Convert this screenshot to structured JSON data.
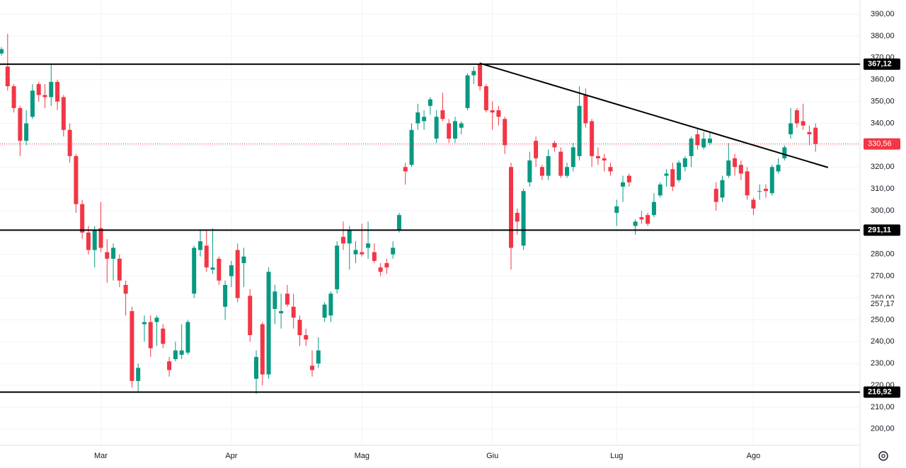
{
  "chart_data": {
    "type": "candlestick",
    "up_color": "#089981",
    "down_color": "#f23645",
    "xlim": [
      -0.23,
      138.15
    ],
    "ylim": [
      192.5,
      396.5
    ],
    "grid": true,
    "xticks": [
      {
        "value": 16,
        "label": "Mar"
      },
      {
        "value": 37,
        "label": "Apr"
      },
      {
        "value": 58,
        "label": "Mag"
      },
      {
        "value": 79,
        "label": "Giu"
      },
      {
        "value": 99,
        "label": "Lug"
      },
      {
        "value": 121,
        "label": "Ago"
      }
    ],
    "yticks": [
      {
        "value": 200,
        "label": "200,00"
      },
      {
        "value": 210,
        "label": "210,00"
      },
      {
        "value": 220,
        "label": "220,00"
      },
      {
        "value": 230,
        "label": "230,00"
      },
      {
        "value": 240,
        "label": "240,00"
      },
      {
        "value": 250,
        "label": "250,00"
      },
      {
        "value": 260,
        "label": "260,00"
      },
      {
        "value": 270,
        "label": "270,00"
      },
      {
        "value": 280,
        "label": "280,00"
      },
      {
        "value": 290,
        "label": "290,00"
      },
      {
        "value": 300,
        "label": "300,00"
      },
      {
        "value": 310,
        "label": "310,00"
      },
      {
        "value": 320,
        "label": "320,00"
      },
      {
        "value": 330,
        "label": "330,00"
      },
      {
        "value": 340,
        "label": "340,00"
      },
      {
        "value": 350,
        "label": "350,00"
      },
      {
        "value": 360,
        "label": "360,00"
      },
      {
        "value": 370,
        "label": "370,00"
      },
      {
        "value": 380,
        "label": "380,00"
      },
      {
        "value": 390,
        "label": "390,00"
      }
    ],
    "open": [
      372,
      366,
      357,
      347,
      332,
      343,
      358,
      353,
      352,
      359,
      352,
      337,
      325,
      303,
      290,
      282,
      292,
      281,
      278,
      278,
      266,
      254,
      222,
      248,
      249,
      249,
      246,
      231,
      232,
      234,
      235,
      262,
      282,
      284,
      273,
      278,
      256,
      270,
      282,
      276,
      261,
      223,
      248,
      225,
      255,
      253,
      262,
      256,
      250,
      243,
      229,
      230,
      251,
      252,
      264,
      288,
      285,
      280,
      281,
      283,
      281,
      274,
      276,
      280,
      291,
      320,
      321,
      340,
      341,
      348,
      333,
      346,
      340,
      333,
      338,
      347,
      362,
      367,
      357,
      346,
      346,
      342,
      320,
      299,
      284,
      313,
      332,
      320,
      316,
      331,
      327,
      316,
      320,
      325,
      353,
      341,
      325,
      324,
      320,
      299,
      311,
      316,
      293,
      297,
      298,
      298,
      307,
      316,
      319,
      314,
      320,
      325,
      335,
      329,
      331,
      310,
      306,
      316,
      324,
      321,
      318,
      305,
      309,
      310,
      308,
      318,
      324,
      335,
      346,
      341,
      336,
      338
    ],
    "high": [
      375,
      381,
      358,
      348,
      346,
      358,
      359,
      358,
      367,
      360,
      353,
      340,
      326,
      305,
      293,
      293,
      304,
      287,
      285,
      280,
      268,
      256,
      230,
      252,
      252,
      252,
      248,
      233,
      240,
      248,
      250,
      284,
      291,
      291,
      292,
      279,
      268,
      277,
      285,
      283,
      264,
      236,
      249,
      274,
      266,
      262,
      266,
      262,
      252,
      246,
      236,
      242,
      258,
      263,
      286,
      295,
      293,
      286,
      294,
      295,
      285,
      276,
      278,
      286,
      299,
      322,
      340,
      349,
      346,
      352,
      346,
      354,
      342,
      343,
      341,
      363,
      366,
      368,
      358,
      350,
      348,
      343,
      322,
      301,
      310,
      327,
      334,
      321,
      328,
      332,
      329,
      322,
      331,
      357,
      356,
      342,
      329,
      326,
      322,
      305,
      316,
      317,
      296,
      300,
      299,
      308,
      313,
      319,
      322,
      323,
      325,
      334,
      338,
      336,
      336,
      313,
      316,
      331,
      326,
      323,
      320,
      306,
      312,
      312,
      321,
      324,
      330,
      347,
      347,
      349,
      339,
      340
    ],
    "low": [
      371,
      355,
      345,
      325,
      330,
      342,
      350,
      347,
      348,
      346,
      334,
      322,
      299,
      287,
      280,
      274,
      281,
      267,
      268,
      265,
      252,
      219,
      217,
      240,
      233,
      238,
      237,
      224,
      231,
      232,
      234,
      260,
      279,
      272,
      271,
      266,
      250,
      265,
      258,
      265,
      240,
      216,
      220,
      223,
      248,
      246,
      256,
      246,
      238,
      238,
      224,
      228,
      249,
      249,
      262,
      282,
      273,
      276,
      279,
      278,
      276,
      270,
      271,
      278,
      290,
      312,
      320,
      337,
      337,
      344,
      331,
      341,
      331,
      331,
      335,
      346,
      358,
      355,
      345,
      337,
      339,
      326,
      273,
      289,
      282,
      311,
      320,
      314,
      314,
      327,
      315,
      315,
      318,
      323,
      338,
      320,
      321,
      318,
      316,
      293,
      304,
      311,
      289,
      294,
      293,
      297,
      306,
      311,
      309,
      313,
      318,
      320,
      328,
      328,
      330,
      300,
      304,
      315,
      316,
      314,
      305,
      298,
      305,
      306,
      307,
      317,
      323,
      333,
      338,
      337,
      330,
      327
    ],
    "close": [
      374,
      357,
      347,
      332,
      340,
      355,
      353,
      352,
      359,
      350,
      337,
      325,
      303,
      290,
      282,
      291,
      283,
      278,
      283,
      268,
      262,
      222,
      228,
      249,
      237,
      251,
      239,
      227,
      236,
      236,
      249,
      283,
      286,
      274,
      274,
      268,
      266,
      275,
      260,
      279,
      243,
      233,
      225,
      272,
      263,
      254,
      257,
      251,
      243,
      241,
      227,
      236,
      257,
      262,
      284,
      285,
      291,
      282,
      280,
      285,
      277,
      272,
      274,
      283,
      298,
      318,
      337,
      345,
      343,
      351,
      343,
      342,
      333,
      341,
      340,
      362,
      364,
      357,
      346,
      345,
      343,
      330,
      283,
      295,
      309,
      323,
      324,
      316,
      325,
      329,
      316,
      320,
      329,
      348,
      340,
      325,
      324,
      323,
      318,
      302,
      313,
      313,
      295,
      296,
      294,
      304,
      312,
      317,
      311,
      322,
      324,
      333,
      330,
      333,
      333,
      304,
      314,
      323,
      320,
      317,
      307,
      301,
      309,
      309,
      320,
      321,
      329,
      340,
      340,
      339,
      335,
      330.56
    ],
    "levels": [
      {
        "value": 367.12,
        "label": "367,12"
      },
      {
        "value": 291.11,
        "label": "291,11"
      },
      {
        "value": 216.92,
        "label": "216,92"
      }
    ],
    "last_price": {
      "value": 330.56,
      "label": "330,56"
    },
    "marker": {
      "value": 257.17,
      "label": "257,17"
    },
    "trendline": {
      "x": [
        77,
        133
      ],
      "y": [
        367.5,
        319.8
      ]
    }
  }
}
